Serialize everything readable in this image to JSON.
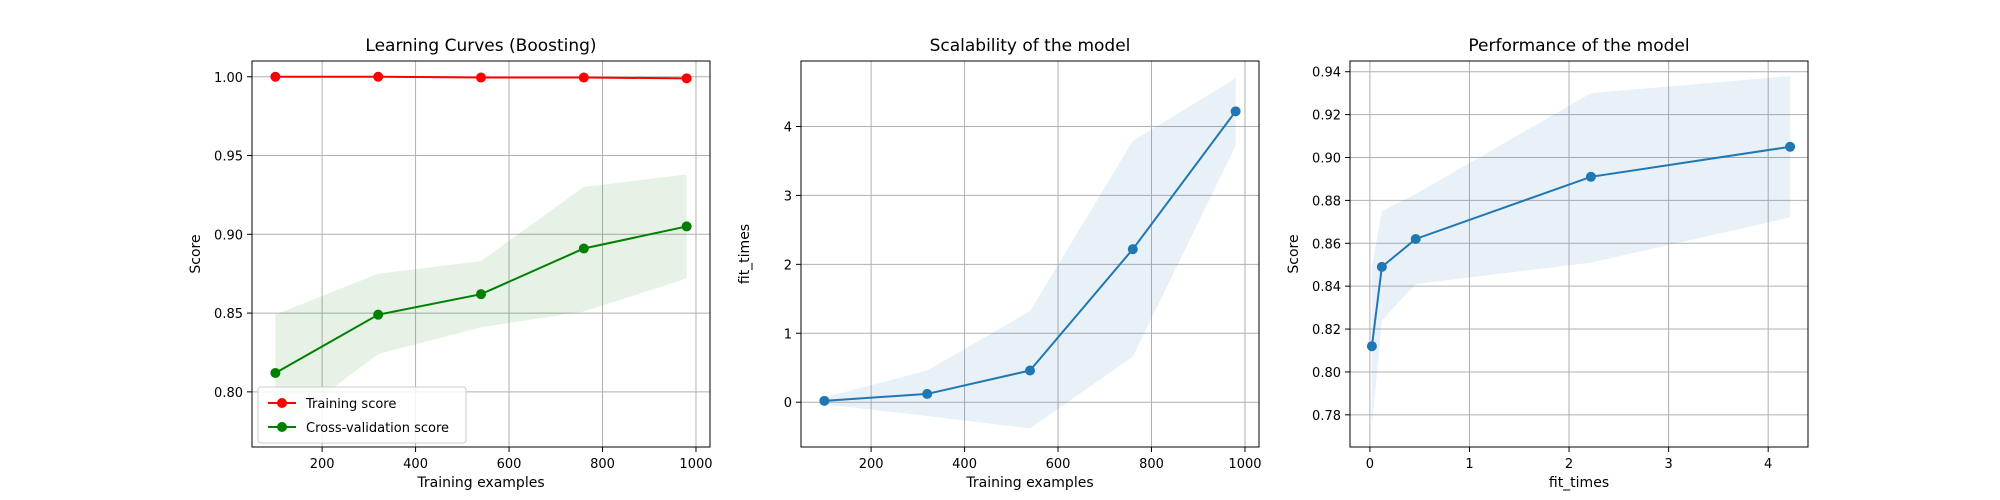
{
  "chart_data": [
    {
      "type": "line",
      "title": "Learning Curves (Boosting)",
      "xlabel": "Training examples",
      "ylabel": "Score",
      "xlim": [
        50,
        1030
      ],
      "ylim": [
        0.765,
        1.01
      ],
      "xticks": [
        200,
        400,
        600,
        800,
        1000
      ],
      "xtick_labels": [
        "200",
        "400",
        "600",
        "800",
        "1000"
      ],
      "yticks": [
        0.8,
        0.85,
        0.9,
        0.95,
        1.0
      ],
      "ytick_labels": [
        "0.80",
        "0.85",
        "0.90",
        "0.95",
        "1.00"
      ],
      "grid": true,
      "legend_position": "lower-left",
      "x": [
        100,
        320,
        540,
        760,
        980
      ],
      "series": [
        {
          "name": "Training score",
          "color": "#ff0000",
          "values": [
            1.0,
            1.0,
            0.9995,
            0.9995,
            0.999
          ],
          "band_lower": [
            1.0,
            1.0,
            0.9995,
            0.9995,
            0.999
          ],
          "band_upper": [
            1.0,
            1.0,
            0.9995,
            0.9995,
            0.999
          ],
          "band_color": "#ff0000"
        },
        {
          "name": "Cross-validation score",
          "color": "#008000",
          "values": [
            0.812,
            0.849,
            0.862,
            0.891,
            0.905
          ],
          "band_lower": [
            0.775,
            0.824,
            0.841,
            0.851,
            0.872
          ],
          "band_upper": [
            0.849,
            0.875,
            0.883,
            0.93,
            0.938
          ],
          "band_color": "#008000"
        }
      ]
    },
    {
      "type": "line",
      "title": "Scalability of the model",
      "xlabel": "Training examples",
      "ylabel": "fit_times",
      "xlim": [
        50,
        1030
      ],
      "ylim": [
        -0.65,
        4.95
      ],
      "xticks": [
        200,
        400,
        600,
        800,
        1000
      ],
      "xtick_labels": [
        "200",
        "400",
        "600",
        "800",
        "1000"
      ],
      "yticks": [
        0,
        1,
        2,
        3,
        4
      ],
      "ytick_labels": [
        "0",
        "1",
        "2",
        "3",
        "4"
      ],
      "grid": true,
      "x": [
        100,
        320,
        540,
        760,
        980
      ],
      "series": [
        {
          "color": "#1f77b4",
          "values": [
            0.02,
            0.12,
            0.46,
            2.22,
            4.22
          ],
          "band_lower": [
            -0.03,
            -0.2,
            -0.38,
            0.66,
            3.72
          ],
          "band_upper": [
            0.07,
            0.46,
            1.32,
            3.79,
            4.7
          ],
          "band_color": "#1f77b4"
        }
      ]
    },
    {
      "type": "line",
      "title": "Performance of the model",
      "xlabel": "fit_times",
      "ylabel": "Score",
      "xlim": [
        -0.2,
        4.4
      ],
      "ylim": [
        0.765,
        0.945
      ],
      "xticks": [
        0,
        1,
        2,
        3,
        4
      ],
      "xtick_labels": [
        "0",
        "1",
        "2",
        "3",
        "4"
      ],
      "yticks": [
        0.78,
        0.8,
        0.82,
        0.84,
        0.86,
        0.88,
        0.9,
        0.92,
        0.94
      ],
      "ytick_labels": [
        "0.78",
        "0.80",
        "0.82",
        "0.84",
        "0.86",
        "0.88",
        "0.90",
        "0.92",
        "0.94"
      ],
      "grid": true,
      "x": [
        0.02,
        0.12,
        0.46,
        2.22,
        4.22
      ],
      "series": [
        {
          "color": "#1f77b4",
          "values": [
            0.812,
            0.849,
            0.862,
            0.891,
            0.905
          ],
          "band_lower": [
            0.775,
            0.824,
            0.841,
            0.851,
            0.872
          ],
          "band_upper": [
            0.849,
            0.875,
            0.883,
            0.93,
            0.938
          ],
          "band_color": "#1f77b4"
        }
      ]
    }
  ]
}
